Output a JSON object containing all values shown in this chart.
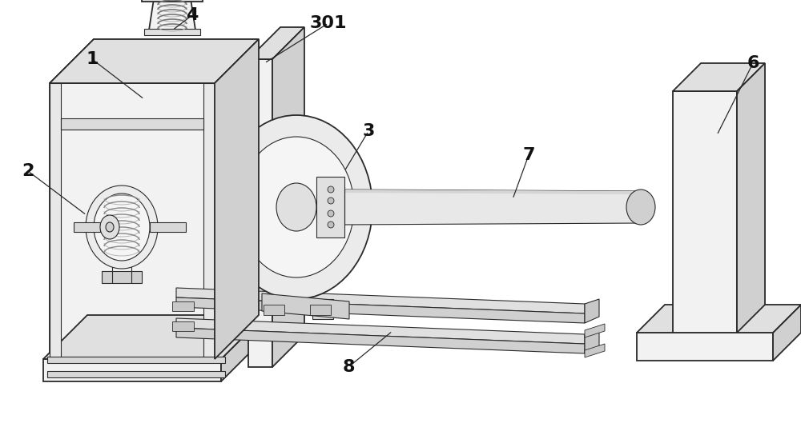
{
  "bg_color": "#ffffff",
  "lc": "#2a2a2a",
  "lw_main": 1.3,
  "lw_thin": 0.8,
  "fc_front": "#f2f2f2",
  "fc_top": "#e0e0e0",
  "fc_right": "#d0d0d0",
  "fc_dark": "#c0c0c0",
  "figsize": [
    10.0,
    5.54
  ],
  "dpi": 100,
  "label_fontsize": 16
}
